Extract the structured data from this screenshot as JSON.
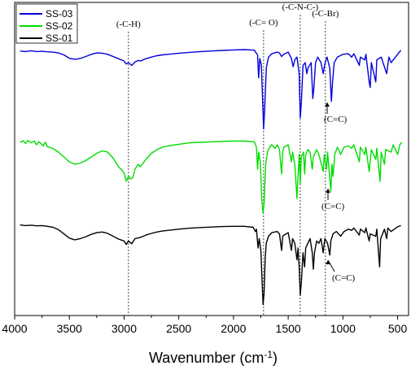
{
  "chart_data": {
    "type": "line",
    "xlabel": "Wavenumber (cm",
    "xlabel_sup": "-1",
    "xlabel_close": ")",
    "xlim": [
      4000,
      400
    ],
    "x_ticks": [
      "4000",
      "3500",
      "3000",
      "2500",
      "2000",
      "1500",
      "1000",
      "500"
    ],
    "legend": {
      "placement": "top-left",
      "entries": [
        "SS-03",
        "SS-02",
        "SS-01"
      ]
    },
    "series": [
      {
        "name": "SS-03",
        "color": "#0000dd",
        "points": [
          [
            3950,
            0.08
          ],
          [
            3900,
            0.1
          ],
          [
            3850,
            0.07
          ],
          [
            3800,
            0.1
          ],
          [
            3750,
            0.09
          ],
          [
            3700,
            0.11
          ],
          [
            3650,
            0.12
          ],
          [
            3600,
            0.15
          ],
          [
            3550,
            0.22
          ],
          [
            3500,
            0.34
          ],
          [
            3450,
            0.38
          ],
          [
            3400,
            0.35
          ],
          [
            3350,
            0.28
          ],
          [
            3300,
            0.2
          ],
          [
            3250,
            0.15
          ],
          [
            3200,
            0.16
          ],
          [
            3150,
            0.2
          ],
          [
            3100,
            0.28
          ],
          [
            3050,
            0.36
          ],
          [
            3000,
            0.44
          ],
          [
            2980,
            0.55
          ],
          [
            2960,
            0.5
          ],
          [
            2930,
            0.6
          ],
          [
            2900,
            0.48
          ],
          [
            2870,
            0.42
          ],
          [
            2850,
            0.44
          ],
          [
            2800,
            0.36
          ],
          [
            2750,
            0.3
          ],
          [
            2700,
            0.25
          ],
          [
            2650,
            0.22
          ],
          [
            2600,
            0.2
          ],
          [
            2500,
            0.16
          ],
          [
            2400,
            0.13
          ],
          [
            2300,
            0.1
          ],
          [
            2200,
            0.08
          ],
          [
            2100,
            0.06
          ],
          [
            2000,
            0.04
          ],
          [
            1900,
            0.03
          ],
          [
            1810,
            0.05
          ],
          [
            1780,
            0.22
          ],
          [
            1770,
            1.05
          ],
          [
            1760,
            0.35
          ],
          [
            1745,
            0.6
          ],
          [
            1735,
            1.7
          ],
          [
            1725,
            2.9
          ],
          [
            1715,
            2.2
          ],
          [
            1700,
            0.7
          ],
          [
            1680,
            0.3
          ],
          [
            1650,
            0.18
          ],
          [
            1600,
            0.12
          ],
          [
            1580,
            0.15
          ],
          [
            1560,
            0.28
          ],
          [
            1540,
            0.2
          ],
          [
            1500,
            0.12
          ],
          [
            1470,
            0.35
          ],
          [
            1455,
            0.65
          ],
          [
            1440,
            0.4
          ],
          [
            1420,
            0.3
          ],
          [
            1400,
            0.9
          ],
          [
            1390,
            2.5
          ],
          [
            1380,
            2.0
          ],
          [
            1365,
            0.6
          ],
          [
            1345,
            0.5
          ],
          [
            1330,
            0.9
          ],
          [
            1320,
            0.7
          ],
          [
            1290,
            0.5
          ],
          [
            1275,
            1.8
          ],
          [
            1265,
            1.4
          ],
          [
            1250,
            0.5
          ],
          [
            1230,
            0.3
          ],
          [
            1200,
            0.5
          ],
          [
            1180,
            0.9
          ],
          [
            1165,
            0.55
          ],
          [
            1145,
            0.3
          ],
          [
            1120,
            0.7
          ],
          [
            1105,
            1.9
          ],
          [
            1095,
            1.2
          ],
          [
            1080,
            0.5
          ],
          [
            1050,
            0.3
          ],
          [
            1000,
            0.2
          ],
          [
            950,
            0.18
          ],
          [
            920,
            0.3
          ],
          [
            900,
            0.18
          ],
          [
            850,
            0.6
          ],
          [
            840,
            0.3
          ],
          [
            800,
            0.4
          ],
          [
            790,
            0.2
          ],
          [
            760,
            1.2
          ],
          [
            750,
            1.4
          ],
          [
            740,
            0.5
          ],
          [
            700,
            1.2
          ],
          [
            690,
            0.4
          ],
          [
            650,
            0.3
          ],
          [
            600,
            0.9
          ],
          [
            580,
            0.3
          ],
          [
            560,
            0.5
          ],
          [
            500,
            0.2
          ],
          [
            470,
            0.05
          ]
        ]
      },
      {
        "name": "SS-02",
        "color": "#00dd00",
        "points": [
          [
            3950,
            0.1
          ],
          [
            3920,
            0.04
          ],
          [
            3900,
            0.15
          ],
          [
            3880,
            0.02
          ],
          [
            3850,
            0.12
          ],
          [
            3820,
            0.05
          ],
          [
            3800,
            0.2
          ],
          [
            3780,
            0.08
          ],
          [
            3760,
            0.15
          ],
          [
            3740,
            0.25
          ],
          [
            3720,
            0.1
          ],
          [
            3700,
            0.28
          ],
          [
            3650,
            0.35
          ],
          [
            3600,
            0.5
          ],
          [
            3550,
            0.7
          ],
          [
            3500,
            0.9
          ],
          [
            3450,
            1.0
          ],
          [
            3400,
            0.95
          ],
          [
            3350,
            0.85
          ],
          [
            3300,
            0.7
          ],
          [
            3250,
            0.55
          ],
          [
            3200,
            0.45
          ],
          [
            3150,
            0.5
          ],
          [
            3100,
            0.75
          ],
          [
            3050,
            1.1
          ],
          [
            3000,
            1.35
          ],
          [
            2980,
            1.7
          ],
          [
            2960,
            1.5
          ],
          [
            2940,
            1.6
          ],
          [
            2920,
            1.55
          ],
          [
            2900,
            1.2
          ],
          [
            2870,
            1.0
          ],
          [
            2850,
            1.1
          ],
          [
            2800,
            0.8
          ],
          [
            2750,
            0.55
          ],
          [
            2700,
            0.4
          ],
          [
            2650,
            0.3
          ],
          [
            2600,
            0.25
          ],
          [
            2500,
            0.18
          ],
          [
            2400,
            0.12
          ],
          [
            2300,
            0.1
          ],
          [
            2200,
            0.08
          ],
          [
            2100,
            0.06
          ],
          [
            2000,
            0.05
          ],
          [
            1900,
            0.05
          ],
          [
            1810,
            0.08
          ],
          [
            1790,
            0.3
          ],
          [
            1780,
            1.2
          ],
          [
            1770,
            0.5
          ],
          [
            1755,
            0.9
          ],
          [
            1740,
            2.5
          ],
          [
            1730,
            3.0
          ],
          [
            1720,
            2.6
          ],
          [
            1705,
            1.0
          ],
          [
            1690,
            0.5
          ],
          [
            1670,
            0.3
          ],
          [
            1650,
            0.2
          ],
          [
            1620,
            0.35
          ],
          [
            1600,
            0.2
          ],
          [
            1580,
            0.4
          ],
          [
            1560,
            1.4
          ],
          [
            1550,
            0.5
          ],
          [
            1540,
            0.3
          ],
          [
            1500,
            0.2
          ],
          [
            1470,
            0.9
          ],
          [
            1460,
            0.5
          ],
          [
            1440,
            1.0
          ],
          [
            1420,
            2.4
          ],
          [
            1410,
            1.5
          ],
          [
            1400,
            0.6
          ],
          [
            1390,
            1.8
          ],
          [
            1380,
            0.7
          ],
          [
            1360,
            0.5
          ],
          [
            1350,
            1.4
          ],
          [
            1340,
            0.6
          ],
          [
            1320,
            0.4
          ],
          [
            1300,
            0.5
          ],
          [
            1280,
            1.2
          ],
          [
            1270,
            0.7
          ],
          [
            1240,
            0.4
          ],
          [
            1220,
            0.6
          ],
          [
            1180,
            1.3
          ],
          [
            1170,
            0.6
          ],
          [
            1150,
            1.2
          ],
          [
            1140,
            0.5
          ],
          [
            1120,
            1.6
          ],
          [
            1110,
            2.1
          ],
          [
            1100,
            1.0
          ],
          [
            1090,
            1.5
          ],
          [
            1075,
            0.6
          ],
          [
            1050,
            0.3
          ],
          [
            1020,
            0.6
          ],
          [
            990,
            0.3
          ],
          [
            950,
            0.25
          ],
          [
            920,
            0.35
          ],
          [
            900,
            0.2
          ],
          [
            850,
            0.9
          ],
          [
            840,
            0.3
          ],
          [
            800,
            0.6
          ],
          [
            790,
            0.3
          ],
          [
            760,
            1.3
          ],
          [
            740,
            0.4
          ],
          [
            700,
            0.8
          ],
          [
            690,
            0.35
          ],
          [
            660,
            1.7
          ],
          [
            650,
            0.5
          ],
          [
            620,
            1.0
          ],
          [
            610,
            0.4
          ],
          [
            560,
            0.5
          ],
          [
            540,
            0.2
          ],
          [
            500,
            0.6
          ],
          [
            480,
            0.2
          ],
          [
            460,
            0.1
          ]
        ]
      },
      {
        "name": "SS-01",
        "color": "#000000",
        "points": [
          [
            3950,
            0.02
          ],
          [
            3900,
            0.05
          ],
          [
            3850,
            0.03
          ],
          [
            3800,
            0.06
          ],
          [
            3750,
            0.05
          ],
          [
            3700,
            0.08
          ],
          [
            3650,
            0.12
          ],
          [
            3600,
            0.22
          ],
          [
            3550,
            0.4
          ],
          [
            3500,
            0.58
          ],
          [
            3450,
            0.65
          ],
          [
            3400,
            0.6
          ],
          [
            3350,
            0.52
          ],
          [
            3300,
            0.42
          ],
          [
            3250,
            0.35
          ],
          [
            3200,
            0.32
          ],
          [
            3150,
            0.38
          ],
          [
            3100,
            0.5
          ],
          [
            3050,
            0.62
          ],
          [
            3000,
            0.7
          ],
          [
            2980,
            0.85
          ],
          [
            2960,
            0.7
          ],
          [
            2930,
            0.82
          ],
          [
            2900,
            0.6
          ],
          [
            2850,
            0.55
          ],
          [
            2800,
            0.45
          ],
          [
            2750,
            0.38
          ],
          [
            2700,
            0.32
          ],
          [
            2650,
            0.28
          ],
          [
            2600,
            0.25
          ],
          [
            2500,
            0.2
          ],
          [
            2400,
            0.16
          ],
          [
            2300,
            0.13
          ],
          [
            2200,
            0.11
          ],
          [
            2100,
            0.09
          ],
          [
            2000,
            0.08
          ],
          [
            1900,
            0.08
          ],
          [
            1820,
            0.12
          ],
          [
            1800,
            0.3
          ],
          [
            1790,
            0.2
          ],
          [
            1775,
            1.0
          ],
          [
            1765,
            0.6
          ],
          [
            1750,
            1.1
          ],
          [
            1740,
            2.2
          ],
          [
            1730,
            3.4
          ],
          [
            1720,
            2.9
          ],
          [
            1710,
            1.4
          ],
          [
            1700,
            0.8
          ],
          [
            1680,
            0.5
          ],
          [
            1650,
            0.35
          ],
          [
            1600,
            0.3
          ],
          [
            1580,
            0.4
          ],
          [
            1560,
            1.1
          ],
          [
            1550,
            0.5
          ],
          [
            1520,
            0.4
          ],
          [
            1500,
            0.35
          ],
          [
            1470,
            1.1
          ],
          [
            1460,
            0.6
          ],
          [
            1440,
            0.8
          ],
          [
            1420,
            1.5
          ],
          [
            1410,
            1.0
          ],
          [
            1400,
            1.8
          ],
          [
            1390,
            3.0
          ],
          [
            1380,
            2.5
          ],
          [
            1365,
            1.2
          ],
          [
            1350,
            1.8
          ],
          [
            1340,
            1.0
          ],
          [
            1320,
            0.8
          ],
          [
            1300,
            0.6
          ],
          [
            1280,
            1.2
          ],
          [
            1270,
            1.9
          ],
          [
            1260,
            1.2
          ],
          [
            1240,
            0.7
          ],
          [
            1220,
            0.8
          ],
          [
            1200,
            0.6
          ],
          [
            1180,
            1.2
          ],
          [
            1165,
            0.6
          ],
          [
            1140,
            0.8
          ],
          [
            1120,
            1.3
          ],
          [
            1110,
            0.7
          ],
          [
            1090,
            0.4
          ],
          [
            1060,
            0.3
          ],
          [
            1020,
            0.5
          ],
          [
            990,
            0.3
          ],
          [
            950,
            0.2
          ],
          [
            920,
            0.25
          ],
          [
            900,
            0.15
          ],
          [
            850,
            0.45
          ],
          [
            840,
            0.2
          ],
          [
            800,
            0.35
          ],
          [
            790,
            0.15
          ],
          [
            760,
            0.7
          ],
          [
            750,
            0.4
          ],
          [
            700,
            0.5
          ],
          [
            690,
            0.2
          ],
          [
            665,
            1.8
          ],
          [
            655,
            0.6
          ],
          [
            620,
            0.2
          ],
          [
            600,
            0.6
          ],
          [
            590,
            0.15
          ],
          [
            560,
            0.3
          ],
          [
            500,
            0.1
          ],
          [
            470,
            0.05
          ]
        ]
      }
    ],
    "reference_lines": [
      {
        "x": 2960,
        "label": "(-C-H)"
      },
      {
        "x": 1725,
        "label": "(-C= O)"
      },
      {
        "x": 1390,
        "label": "(-C-N-C-)"
      },
      {
        "x": 1160,
        "label": "(-C-Br)"
      }
    ],
    "annotations": [
      {
        "text": "(C=C)",
        "series": "SS-03"
      },
      {
        "text": "(C=C)",
        "series": "SS-02"
      },
      {
        "text": "(C=C)",
        "series": "SS-01"
      }
    ]
  }
}
